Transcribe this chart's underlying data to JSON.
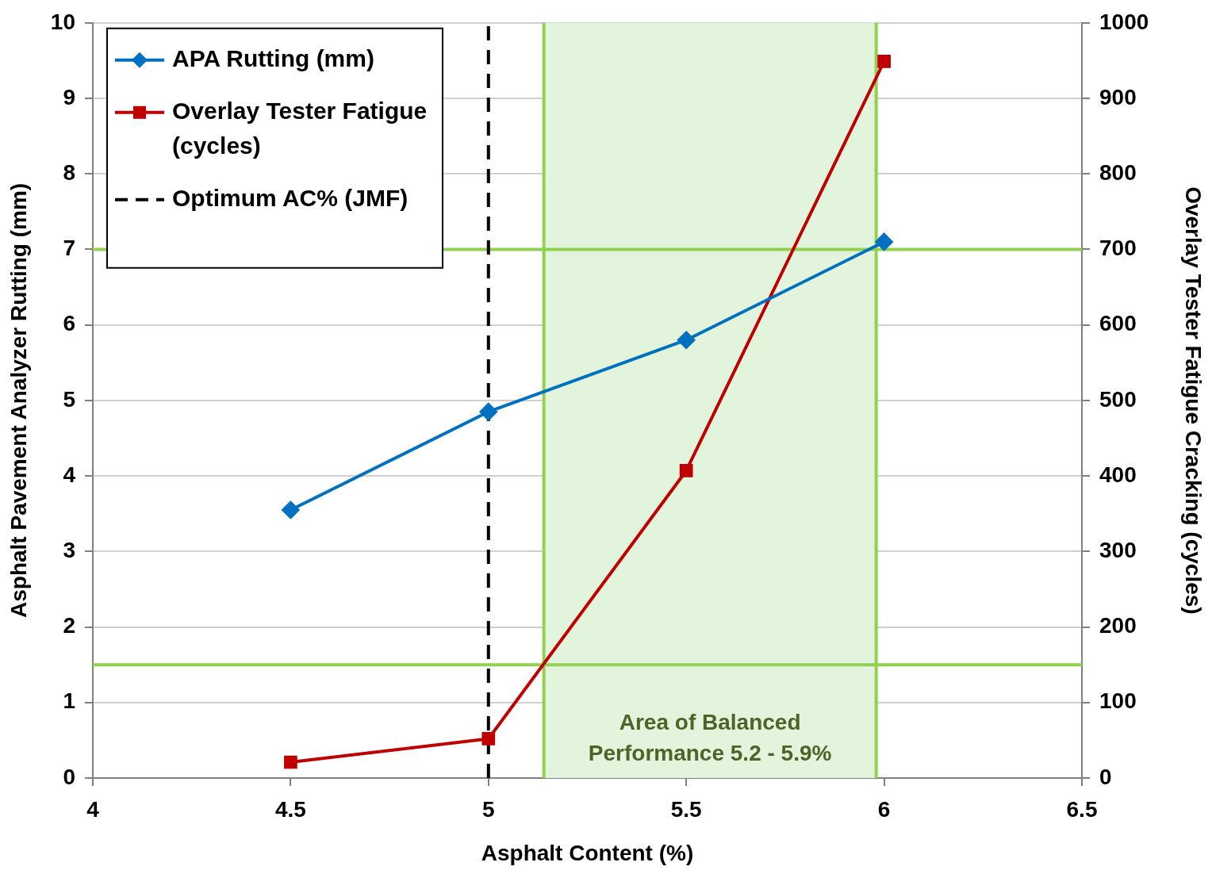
{
  "chart_data": {
    "type": "line",
    "xlabel": "Asphalt Content (%)",
    "ylabel": "Asphalt Pavement Analyzer Rutting (mm)",
    "y2label": "Overlay Tester Fatigue Cracking (cycles)",
    "xlim": [
      4,
      6.5
    ],
    "xticks": [
      4,
      4.5,
      5,
      5.5,
      6,
      6.5
    ],
    "ylim": [
      0,
      10
    ],
    "yticks": [
      0,
      1,
      2,
      3,
      4,
      5,
      6,
      7,
      8,
      9,
      10
    ],
    "y2lim": [
      0,
      1000
    ],
    "y2ticks": [
      0,
      100,
      200,
      300,
      400,
      500,
      600,
      700,
      800,
      900,
      1000
    ],
    "grid": "y",
    "legend": "top left",
    "series": [
      {
        "name": "APA Rutting (mm)",
        "color": "#0070c0",
        "marker": "diamond",
        "x": [
          4.5,
          5,
          5.5,
          6
        ],
        "values": [
          3.55,
          4.85,
          5.8,
          7.1
        ]
      },
      {
        "name": "Overlay Tester Fatigue (cycles)",
        "color": "#c00000",
        "marker": "square",
        "axis": "y2",
        "x": [
          4.5,
          5,
          5.5,
          6
        ],
        "values": [
          21,
          52,
          407,
          949
        ]
      },
      {
        "name": "Optimum AC% (JMF)",
        "color": "#000000",
        "marker": "none",
        "line_style": "dashed",
        "x": [
          5,
          5
        ],
        "values": [
          0,
          10
        ]
      }
    ],
    "ref_lines": [
      {
        "axis": "y",
        "value": 7,
        "color": "#92d050"
      },
      {
        "axis": "x",
        "value": 5.98,
        "color": "#92d050"
      },
      {
        "axis": "y2",
        "value": 150,
        "color": "#92d050"
      },
      {
        "axis": "x",
        "value": 5.14,
        "color": "#92d050"
      }
    ],
    "bands": [
      {
        "axis": "x",
        "from": 5.14,
        "to": 5.98,
        "label": "Area of Balanced Performance 5.2 - 5.9%",
        "color": "#e2f5dc"
      }
    ]
  }
}
